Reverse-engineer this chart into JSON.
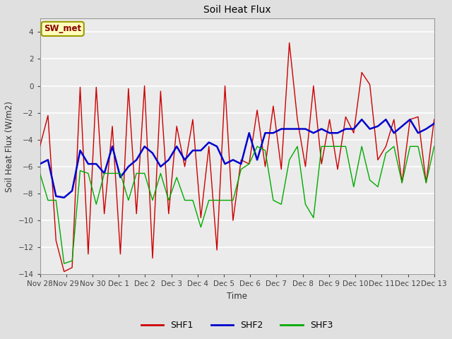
{
  "title": "Soil Heat Flux",
  "ylabel": "Soil Heat Flux (W/m2)",
  "xlabel": "Time",
  "annotation": "SW_met",
  "ylim": [
    -14,
    5
  ],
  "yticks": [
    -14,
    -12,
    -10,
    -8,
    -6,
    -4,
    -2,
    0,
    2,
    4
  ],
  "xtick_labels": [
    "Nov 28",
    "Nov 29",
    "Nov 30",
    "Dec 1",
    "Dec 2",
    "Dec 3",
    "Dec 4",
    "Dec 5",
    "Dec 6",
    "Dec 7",
    "Dec 8",
    "Dec 9",
    "Dec 10",
    "Dec 11",
    "Dec 12",
    "Dec 13"
  ],
  "colors": {
    "SHF1": "#cc0000",
    "SHF2": "#0000cc",
    "SHF3": "#00aa00"
  },
  "bg_color": "#e0e0e0",
  "plot_bg": "#ebebeb",
  "legend_labels": [
    "SHF1",
    "SHF2",
    "SHF3"
  ],
  "SHF1": [
    -4.5,
    -2.2,
    -11.5,
    -13.8,
    -13.5,
    -0.1,
    -12.5,
    -0.1,
    -9.5,
    -3.0,
    -12.5,
    -0.2,
    -9.5,
    -0.0,
    -12.8,
    -0.4,
    -9.5,
    -3.0,
    -6.0,
    -2.5,
    -9.8,
    -4.5,
    -12.2,
    -0.0,
    -10.0,
    -5.5,
    -5.8,
    -1.8,
    -6.0,
    -1.5,
    -6.2,
    3.2,
    -2.5,
    -6.0,
    0.0,
    -5.8,
    -2.5,
    -6.2,
    -2.3,
    -3.5,
    1.0,
    0.1,
    -5.5,
    -4.5,
    -2.5,
    -7.2,
    -2.5,
    -2.3,
    -7.2,
    -2.5
  ],
  "SHF2": [
    -5.8,
    -5.5,
    -8.2,
    -8.3,
    -7.8,
    -4.8,
    -5.8,
    -5.8,
    -6.5,
    -4.5,
    -6.8,
    -6.0,
    -5.5,
    -4.5,
    -5.0,
    -6.0,
    -5.5,
    -4.5,
    -5.5,
    -4.8,
    -4.8,
    -4.2,
    -4.5,
    -5.8,
    -5.5,
    -5.8,
    -3.5,
    -5.5,
    -3.5,
    -3.5,
    -3.2,
    -3.2,
    -3.2,
    -3.2,
    -3.5,
    -3.2,
    -3.5,
    -3.5,
    -3.2,
    -3.2,
    -2.5,
    -3.2,
    -3.0,
    -2.5,
    -3.5,
    -3.0,
    -2.5,
    -3.5,
    -3.2,
    -2.8
  ],
  "SHF3": [
    -6.5,
    -8.5,
    -8.5,
    -13.2,
    -13.0,
    -6.3,
    -6.5,
    -8.8,
    -6.5,
    -6.5,
    -6.5,
    -8.5,
    -6.5,
    -6.5,
    -8.5,
    -6.5,
    -8.5,
    -6.8,
    -8.5,
    -8.5,
    -10.5,
    -8.5,
    -8.5,
    -8.5,
    -8.5,
    -6.2,
    -5.8,
    -4.5,
    -4.8,
    -8.5,
    -8.8,
    -5.5,
    -4.5,
    -8.8,
    -9.8,
    -4.5,
    -4.5,
    -4.5,
    -4.5,
    -7.5,
    -4.5,
    -7.0,
    -7.5,
    -5.0,
    -4.5,
    -7.2,
    -4.5,
    -4.5,
    -7.2,
    -4.5
  ]
}
